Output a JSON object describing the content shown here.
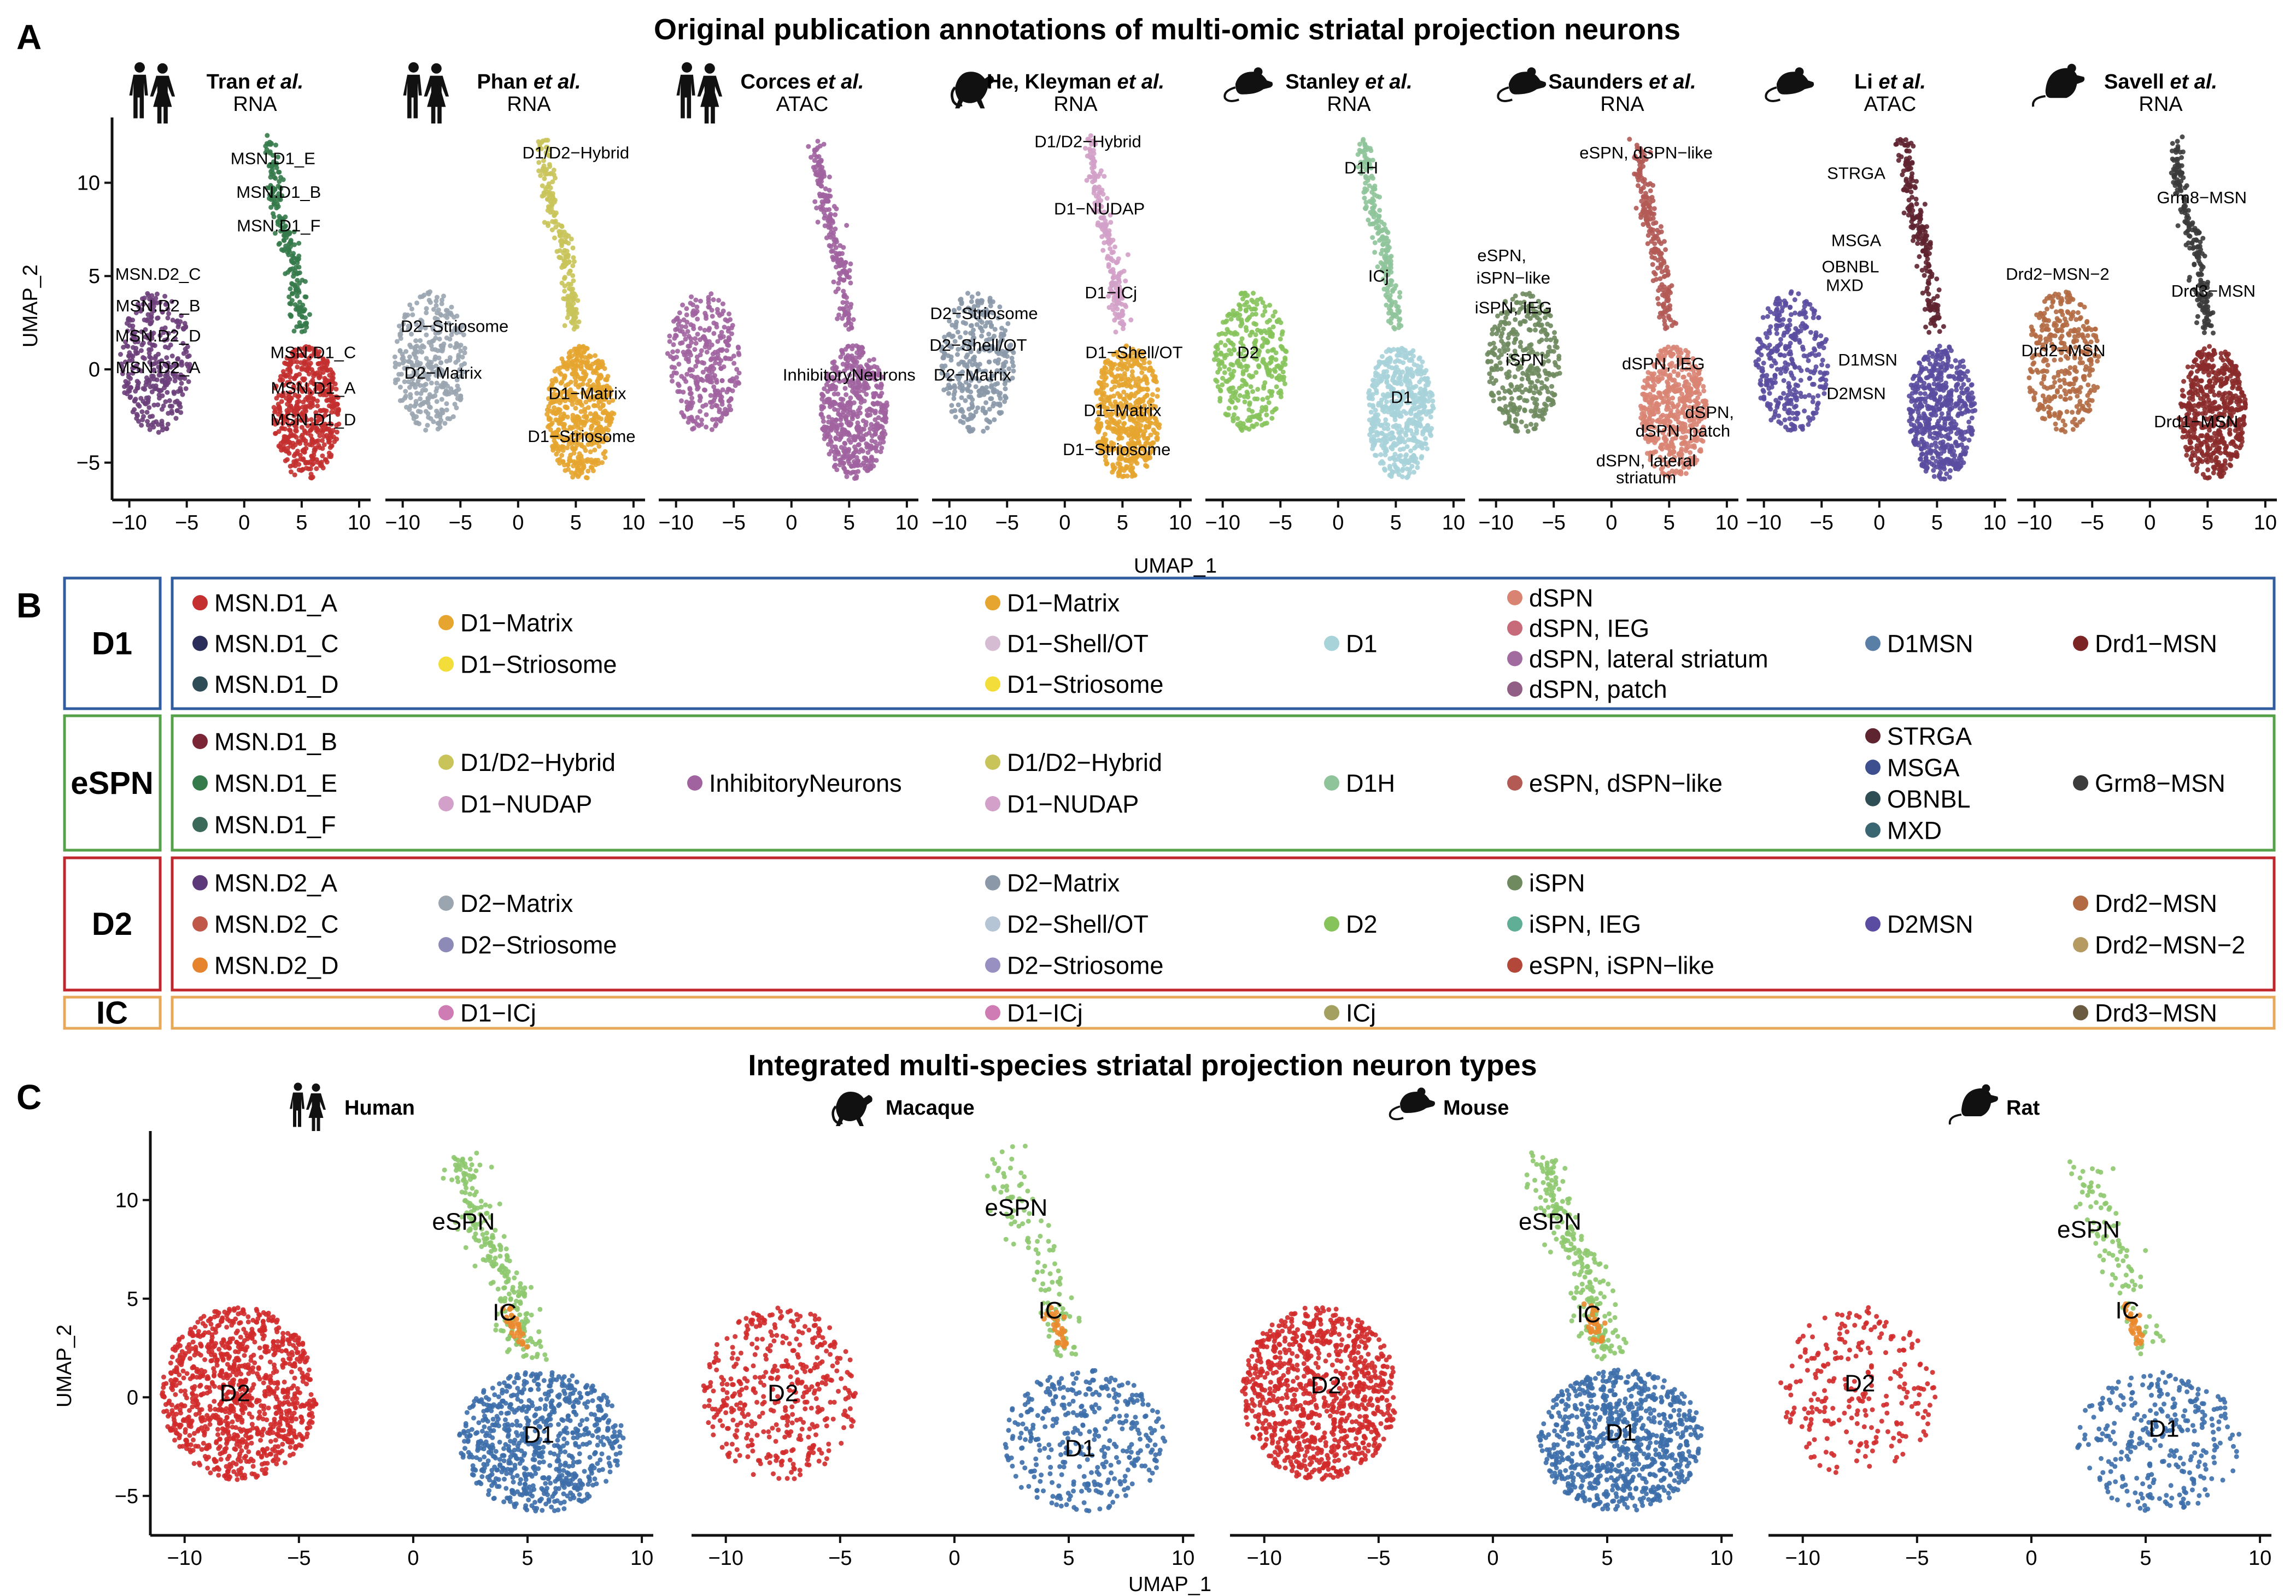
{
  "panel_a": {
    "label": "A",
    "title": "Original publication annotations of multi-omic striatal projection neurons",
    "xlabel": "UMAP_1",
    "ylabel": "UMAP_2",
    "studies": [
      {
        "name": "Tran",
        "suffix": "et al.",
        "assay": "RNA",
        "species": "human"
      },
      {
        "name": "Phan",
        "suffix": "et al.",
        "assay": "RNA",
        "species": "human"
      },
      {
        "name": "Corces",
        "suffix": "et al.",
        "assay": "ATAC",
        "species": "human"
      },
      {
        "name": "He, Kleyman",
        "suffix": "et al.",
        "assay": "RNA",
        "species": "macaque"
      },
      {
        "name": "Stanley",
        "suffix": "et al.",
        "assay": "RNA",
        "species": "mouse"
      },
      {
        "name": "Saunders",
        "suffix": "et al.",
        "assay": "RNA",
        "species": "mouse"
      },
      {
        "name": "Li",
        "suffix": "et al.",
        "assay": "ATAC",
        "species": "mouse"
      },
      {
        "name": "Savell",
        "suffix": "et al.",
        "assay": "RNA",
        "species": "rat"
      }
    ]
  },
  "panel_b": {
    "label": "B",
    "groups": [
      "D1",
      "eSPN",
      "D2",
      "IC"
    ],
    "group_colors": [
      "#2f5da0",
      "#55a14a",
      "#c0272d",
      "#e8a85a"
    ]
  },
  "panel_c": {
    "label": "C",
    "title": "Integrated multi-species striatal projection neuron types",
    "xlabel": "UMAP_1",
    "ylabel": "UMAP_2",
    "species": [
      "Human",
      "Macaque",
      "Mouse",
      "Rat"
    ]
  },
  "chart_data": [
    {
      "type": "scatter",
      "panel": "A",
      "xlabel": "UMAP_1",
      "ylabel": "UMAP_2",
      "xlim": [
        -11.5,
        11
      ],
      "ylim": [
        -7,
        13.5
      ],
      "xticks": [
        -10,
        -5,
        0,
        5,
        10
      ],
      "yticks": [
        -5,
        0,
        5,
        10
      ],
      "facets": [
        {
          "study": "Tran et al.",
          "labels": [
            {
              "text": "MSN.D1_E",
              "x": 2.5,
              "y": 11
            },
            {
              "text": "MSN.D1_B",
              "x": 3,
              "y": 9.2
            },
            {
              "text": "MSN.D1_F",
              "x": 3,
              "y": 7.4
            },
            {
              "text": "MSN.D2_C",
              "x": -7.5,
              "y": 4.8
            },
            {
              "text": "MSN.D2_B",
              "x": -7.5,
              "y": 3.1
            },
            {
              "text": "MSN.D2_D",
              "x": -7.5,
              "y": 1.5
            },
            {
              "text": "MSN.D2_A",
              "x": -7.5,
              "y": -0.2
            },
            {
              "text": "MSN.D1_C",
              "x": 6,
              "y": 0.6
            },
            {
              "text": "MSN.D1_A",
              "x": 6,
              "y": -1.3
            },
            {
              "text": "MSN.D1_D",
              "x": 6,
              "y": -3
            }
          ]
        },
        {
          "study": "Phan et al.",
          "labels": [
            {
              "text": "D1/D2−Hybrid",
              "x": 5,
              "y": 11.3
            },
            {
              "text": "D2−Striosome",
              "x": -5.5,
              "y": 2
            },
            {
              "text": "D2−Matrix",
              "x": -6.5,
              "y": -0.5
            },
            {
              "text": "D1−Matrix",
              "x": 6,
              "y": -1.6
            },
            {
              "text": "D1−Striosome",
              "x": 5.5,
              "y": -3.9
            }
          ]
        },
        {
          "study": "Corces et al.",
          "labels": [
            {
              "text": "InhibitoryNeurons",
              "x": 5,
              "y": -0.6
            }
          ]
        },
        {
          "study": "He, Kleyman et al.",
          "labels": [
            {
              "text": "D1/D2−Hybrid",
              "x": 2,
              "y": 11.9
            },
            {
              "text": "D1−NUDAP",
              "x": 3,
              "y": 8.3
            },
            {
              "text": "D1−ICj",
              "x": 4,
              "y": 3.8
            },
            {
              "text": "D2−Striosome",
              "x": -7,
              "y": 2.7
            },
            {
              "text": "D2−Shell/OT",
              "x": -7.5,
              "y": 1
            },
            {
              "text": "D1−Shell/OT",
              "x": 6,
              "y": 0.6
            },
            {
              "text": "D2−Matrix",
              "x": -8,
              "y": -0.6
            },
            {
              "text": "D1−Matrix",
              "x": 5,
              "y": -2.5
            },
            {
              "text": "D1−Striosome",
              "x": 4.5,
              "y": -4.6
            }
          ]
        },
        {
          "study": "Stanley et al.",
          "labels": [
            {
              "text": "D1H",
              "x": 2,
              "y": 10.5
            },
            {
              "text": "ICj",
              "x": 3.5,
              "y": 4.7
            },
            {
              "text": "D2",
              "x": -7.8,
              "y": 0.6
            },
            {
              "text": "D1",
              "x": 5.5,
              "y": -1.8
            }
          ]
        },
        {
          "study": "Saunders et al.",
          "labels": [
            {
              "text": "eSPN, dSPN−like",
              "x": 3,
              "y": 11.3
            },
            {
              "text": "eSPN,",
              "x": -9.5,
              "y": 5.8
            },
            {
              "text": "iSPN−like",
              "x": -8.5,
              "y": 4.6
            },
            {
              "text": "iSPN, IEG",
              "x": -8.5,
              "y": 3
            },
            {
              "text": "iSPN",
              "x": -7.5,
              "y": 0.2
            },
            {
              "text": "dSPN, IEG",
              "x": 4.5,
              "y": 0
            },
            {
              "text": "dSPN,",
              "x": 8.5,
              "y": -2.6
            },
            {
              "text": "patch",
              "x": 8.5,
              "y": -3.6
            },
            {
              "text": "dSPN",
              "x": 4,
              "y": -3.6
            },
            {
              "text": "dSPN, lateral",
              "x": 3,
              "y": -5.2
            },
            {
              "text": "striatum",
              "x": 3,
              "y": -6.1
            }
          ]
        },
        {
          "study": "Li et al.",
          "labels": [
            {
              "text": "STRGA",
              "x": -2,
              "y": 10.2
            },
            {
              "text": "MSGA",
              "x": -2,
              "y": 6.6
            },
            {
              "text": "OBNBL",
              "x": -2.5,
              "y": 5.2
            },
            {
              "text": "MXD",
              "x": -3,
              "y": 4.2
            },
            {
              "text": "D1MSN",
              "x": -1,
              "y": 0.2
            },
            {
              "text": "D2MSN",
              "x": -2,
              "y": -1.6
            }
          ]
        },
        {
          "study": "Savell et al.",
          "labels": [
            {
              "text": "Grm8−MSN",
              "x": 4.5,
              "y": 8.9
            },
            {
              "text": "Drd2−MSN−2",
              "x": -8,
              "y": 4.8
            },
            {
              "text": "Drd3−MSN",
              "x": 5.5,
              "y": 3.9
            },
            {
              "text": "Drd2−MSN",
              "x": -7.5,
              "y": 0.7
            },
            {
              "text": "Drd1−MSN",
              "x": 4,
              "y": -3.1
            }
          ]
        }
      ]
    },
    {
      "type": "scatter",
      "panel": "C",
      "xlabel": "UMAP_1",
      "ylabel": "UMAP_2",
      "xlim": [
        -11.5,
        10.5
      ],
      "ylim": [
        -7,
        13.5
      ],
      "xticks": [
        -10,
        -5,
        0,
        5,
        10
      ],
      "yticks": [
        -5,
        0,
        5,
        10
      ],
      "series": [
        {
          "name": "D1",
          "color": "#3c6eaa"
        },
        {
          "name": "eSPN",
          "color": "#8dc86e"
        },
        {
          "name": "D2",
          "color": "#d12a2a"
        },
        {
          "name": "IC",
          "color": "#ea8a2f"
        }
      ],
      "facets": [
        {
          "species": "Human",
          "labels": [
            {
              "text": "eSPN",
              "x": 2.2,
              "y": 8.5
            },
            {
              "text": "IC",
              "x": 4,
              "y": 3.9
            },
            {
              "text": "D2",
              "x": -7.8,
              "y": -0.2
            },
            {
              "text": "D1",
              "x": 5.5,
              "y": -2.3
            }
          ]
        },
        {
          "species": "Macaque",
          "labels": [
            {
              "text": "eSPN",
              "x": 2.7,
              "y": 9.2
            },
            {
              "text": "IC",
              "x": 4.2,
              "y": 4
            },
            {
              "text": "D2",
              "x": -7.5,
              "y": -0.2
            },
            {
              "text": "D1",
              "x": 5.5,
              "y": -3
            }
          ]
        },
        {
          "species": "Mouse",
          "labels": [
            {
              "text": "eSPN",
              "x": 2.5,
              "y": 8.5
            },
            {
              "text": "IC",
              "x": 4.2,
              "y": 3.8
            },
            {
              "text": "D2",
              "x": -7.3,
              "y": 0.2
            },
            {
              "text": "D1",
              "x": 5.6,
              "y": -2.2
            }
          ]
        },
        {
          "species": "Rat",
          "labels": [
            {
              "text": "eSPN",
              "x": 2.5,
              "y": 8.1
            },
            {
              "text": "IC",
              "x": 4.2,
              "y": 4
            },
            {
              "text": "D2",
              "x": -7.5,
              "y": 0.3
            },
            {
              "text": "D1",
              "x": 5.8,
              "y": -2
            }
          ]
        }
      ]
    }
  ],
  "legend_rows": [
    {
      "group": "D1",
      "columns": [
        [
          {
            "label": "MSN.D1_A",
            "color": "#c3302f"
          },
          {
            "label": "MSN.D1_C",
            "color": "#2a2d5a"
          },
          {
            "label": "MSN.D1_D",
            "color": "#2d4c55"
          }
        ],
        [
          {
            "label": "D1−Matrix",
            "color": "#e5a52f"
          },
          {
            "label": "D1−Striosome",
            "color": "#f2dd3a"
          }
        ],
        [],
        [
          {
            "label": "D1−Matrix",
            "color": "#e5a52f"
          },
          {
            "label": "D1−Shell/OT",
            "color": "#d6bcd3"
          },
          {
            "label": "D1−Striosome",
            "color": "#f2dd3a"
          }
        ],
        [
          {
            "label": "D1",
            "color": "#a7d3d9"
          }
        ],
        [
          {
            "label": "dSPN",
            "color": "#d98473"
          },
          {
            "label": "dSPN, IEG",
            "color": "#c76a7a"
          },
          {
            "label": "dSPN, lateral striatum",
            "color": "#a16ba0"
          },
          {
            "label": "dSPN, patch",
            "color": "#915f86"
          }
        ],
        [
          {
            "label": "D1MSN",
            "color": "#5a7fa6"
          }
        ],
        [
          {
            "label": "Drd1−MSN",
            "color": "#7b2424"
          }
        ]
      ]
    },
    {
      "group": "eSPN",
      "columns": [
        [
          {
            "label": "MSN.D1_B",
            "color": "#7a2535"
          },
          {
            "label": "MSN.D1_E",
            "color": "#357a4a"
          },
          {
            "label": "MSN.D1_F",
            "color": "#3c6a5a"
          }
        ],
        [
          {
            "label": "D1/D2−Hybrid",
            "color": "#c9c45a"
          },
          {
            "label": "D1−NUDAP",
            "color": "#d2a0c8"
          }
        ],
        [
          {
            "label": "InhibitoryNeurons",
            "color": "#a063a0"
          }
        ],
        [
          {
            "label": "D1/D2−Hybrid",
            "color": "#c9c45a"
          },
          {
            "label": "D1−NUDAP",
            "color": "#d2a0c8"
          }
        ],
        [
          {
            "label": "D1H",
            "color": "#8fc49a"
          }
        ],
        [
          {
            "label": "eSPN, dSPN−like",
            "color": "#b35a55"
          }
        ],
        [
          {
            "label": "STRGA",
            "color": "#5e2430"
          },
          {
            "label": "MSGA",
            "color": "#3d4f8f"
          },
          {
            "label": "OBNBL",
            "color": "#2f4d55"
          },
          {
            "label": "MXD",
            "color": "#3a6672"
          }
        ],
        [
          {
            "label": "Grm8−MSN",
            "color": "#3b3b3b"
          }
        ]
      ]
    },
    {
      "group": "D2",
      "columns": [
        [
          {
            "label": "MSN.D2_A",
            "color": "#5c3a7a"
          },
          {
            "label": "MSN.D2_C",
            "color": "#c0584a"
          },
          {
            "label": "MSN.D2_D",
            "color": "#e5832f"
          }
        ],
        [
          {
            "label": "D2−Matrix",
            "color": "#9aa5b0"
          },
          {
            "label": "D2−Striosome",
            "color": "#8e8ab8"
          }
        ],
        [],
        [
          {
            "label": "D2−Matrix",
            "color": "#8a98a8"
          },
          {
            "label": "D2−Shell/OT",
            "color": "#b5c5d5"
          },
          {
            "label": "D2−Striosome",
            "color": "#9890c0"
          }
        ],
        [
          {
            "label": "D2",
            "color": "#86c35b"
          }
        ],
        [
          {
            "label": "iSPN",
            "color": "#6e8a5e"
          },
          {
            "label": "iSPN, IEG",
            "color": "#5fae95"
          },
          {
            "label": "eSPN, iSPN−like",
            "color": "#b3483a"
          }
        ],
        [
          {
            "label": "D2MSN",
            "color": "#5a4ca0"
          }
        ],
        [
          {
            "label": "Drd2−MSN",
            "color": "#b26a42"
          },
          {
            "label": "Drd2−MSN−2",
            "color": "#b59a62"
          }
        ]
      ]
    },
    {
      "group": "IC",
      "columns": [
        [],
        [
          {
            "label": "D1−ICj",
            "color": "#cf7bb4"
          }
        ],
        [],
        [
          {
            "label": "D1−ICj",
            "color": "#cf7bb4"
          }
        ],
        [
          {
            "label": "ICj",
            "color": "#a4a060"
          }
        ],
        [],
        [],
        [
          {
            "label": "Drd3−MSN",
            "color": "#6a5a40"
          }
        ]
      ]
    }
  ]
}
